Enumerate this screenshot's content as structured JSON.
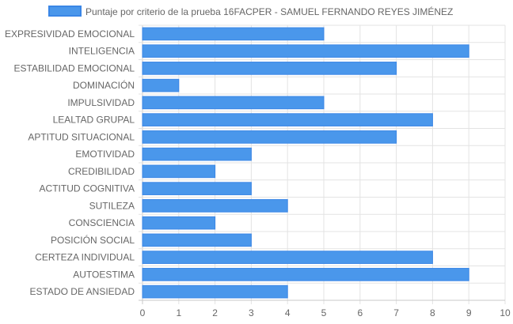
{
  "chart_data": {
    "type": "bar",
    "orientation": "horizontal",
    "legend_position": "top-center",
    "grid": true,
    "xlim": [
      0,
      10
    ],
    "x_ticks": [
      "0",
      "1",
      "2",
      "3",
      "4",
      "5",
      "6",
      "7",
      "8",
      "9",
      "10"
    ],
    "categories": [
      "EXPRESIVIDAD EMOCIONAL",
      "INTELIGENCIA",
      "ESTABILIDAD EMOCIONAL",
      "DOMINACIÓN",
      "IMPULSIVIDAD",
      "LEALTAD GRUPAL",
      "APTITUD SITUACIONAL",
      "EMOTIVIDAD",
      "CREDIBILIDAD",
      "ACTITUD COGNITIVA",
      "SUTILEZA",
      "CONSCIENCIA",
      "POSICIÓN SOCIAL",
      "CERTEZA INDIVIDUAL",
      "AUTOESTIMA",
      "ESTADO DE ANSIEDAD"
    ],
    "series": [
      {
        "name": "Puntaje por criterio de la prueba 16FACPER - SAMUEL FERNANDO REYES JIMÉNEZ",
        "color": "#4a97eb",
        "border_color": "#3a86e6",
        "values": [
          5,
          9,
          7,
          1,
          5,
          8,
          7,
          3,
          2,
          3,
          4,
          2,
          3,
          8,
          9,
          4
        ]
      }
    ]
  }
}
